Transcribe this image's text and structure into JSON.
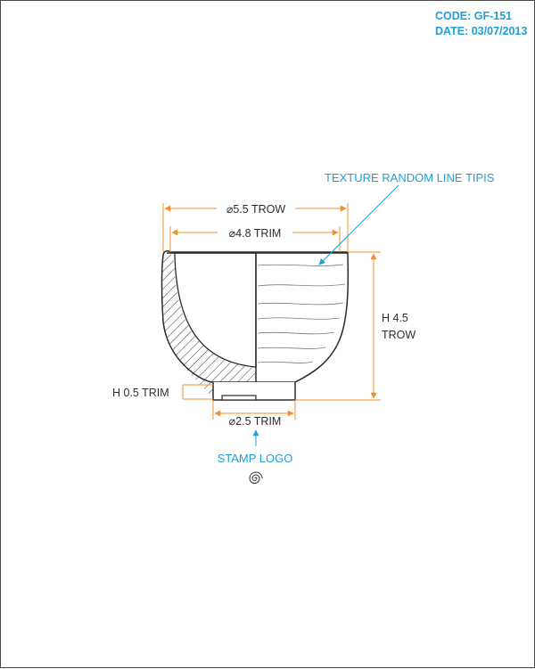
{
  "header": {
    "code": "CODE: GF-151",
    "date": "DATE: 03/07/2013"
  },
  "callouts": {
    "texture": "TEXTURE RANDOM LINE TIPIS",
    "stamp": "STAMP LOGO"
  },
  "dimensions": {
    "outer_diameter": "⌀5.5 TROW",
    "inner_diameter": "⌀4.8 TRIM",
    "height_line1": "H 4.5",
    "height_line2": "TROW",
    "foot_height": "H 0.5 TRIM",
    "foot_diameter": "⌀2.5 TRIM"
  },
  "colors": {
    "dimension_line": "#f0902f",
    "callout": "#1f9fd6",
    "outline": "#2a2a2a"
  },
  "icons": {
    "stamp": "spiral-stamp-icon"
  }
}
